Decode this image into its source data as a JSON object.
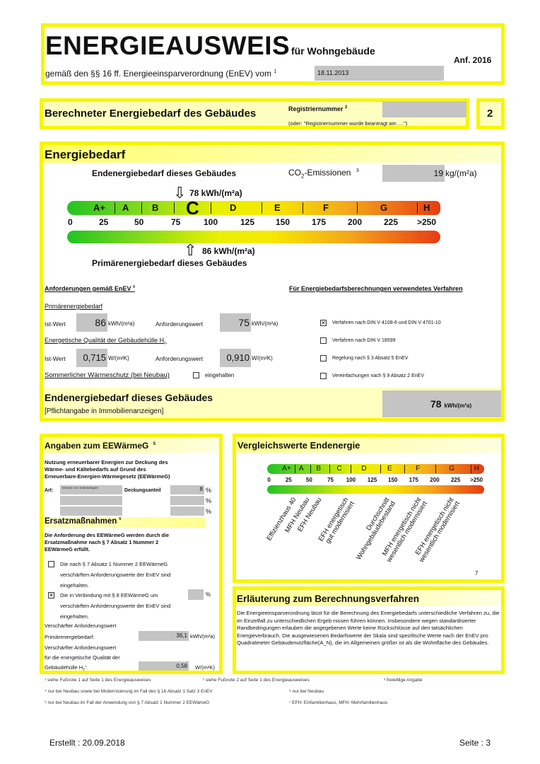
{
  "header": {
    "title": "ENERGIEAUSWEIS",
    "subtitle": "für Wohngebäude",
    "version": "Anf. 2016",
    "legal": "gemäß den §§ 16 ff. Energieeinsparverordnung (EnEV) vom",
    "legal_fn": "1",
    "date": "18.11.2013"
  },
  "section2": {
    "title": "Berechneter Energiebedarf des Gebäudes",
    "reg_label": "Registriernummer",
    "reg_fn": "2",
    "reg_note": "(oder: \"Registriernummer wurde beantragt am ....\")",
    "page_no": "2"
  },
  "energy": {
    "title": "Energiebedarf",
    "end_label": "Endenergiebedarf dieses Gebäudes",
    "co2_label": "CO",
    "co2_sub": "2",
    "co2_suffix": "-Emissionen",
    "co2_fn": "3",
    "co2_value": "19",
    "co2_unit": "kg/(m²a)",
    "end_value_label": "78 kWh/(m²a)",
    "primary_value_label": "86 kWh/(m²a)",
    "primary_label": "Primärenergiebedarf dieses Gebäudes",
    "end_value": 78,
    "primary_value": 86,
    "classes": [
      "A+",
      "A",
      "B",
      "C",
      "D",
      "E",
      "F",
      "G",
      "H"
    ],
    "current_class": "C",
    "ticks": [
      "0",
      "25",
      "50",
      "75",
      "100",
      "125",
      "150",
      "175",
      "200",
      "225",
      ">250"
    ]
  },
  "requirements": {
    "title": "Anforderungen gemäß EnEV",
    "title_fn": "4",
    "primary_heading": "Primärenergiebedarf",
    "ist_label": "Ist-Wert",
    "anf_label": "Anforderungswert",
    "primary_ist": "86",
    "primary_anf": "75",
    "unit_kwh": "kWh/(m²a)",
    "ht_heading": "Energetische Qualität der Gebäudehülle H",
    "ht_sub": "T",
    "ht_fn": "'",
    "ht_ist": "0,715",
    "ht_anf": "0,910",
    "unit_w": "W/(m²K)",
    "summer_label": "Sommerlicher Wärmeschutz (bei Neubau)",
    "summer_check": "eingehalten",
    "summer_checked": false
  },
  "method": {
    "title": "Für Energiebedarfsberechnungen verwendetes Verfahren",
    "options": [
      {
        "label": "Verfahren nach DIN V 4108-6 und DIN V 4701-10",
        "checked": true
      },
      {
        "label": "Verfahren nach DIN V 18599",
        "checked": false
      },
      {
        "label": "Regelung nach § 3 Absatz 5 EnEV",
        "checked": false
      },
      {
        "label": "Vereinfachungen nach § 9 Absatz 2 EnEV",
        "checked": false
      }
    ]
  },
  "end_summary": {
    "title": "Endenergiebedarf dieses Gebäudes",
    "note": "[Pflichtangabe in Immobilienanzeigen]",
    "value": "78",
    "unit": "kWh/(m²a)"
  },
  "eew": {
    "title": "Angaben zum EEWärmeG",
    "title_fn": "5",
    "intro": "Nutzung erneuerbarer Energien zur Deckung des Wärme- und Kältebedarfs auf Grund des Erneuerbare-Energien-Wärmegesetz (EEWärmeG)",
    "art_label": "Art:",
    "art_value": "Einsatz von Solaranlagen",
    "share_label": "Deckungsanteil",
    "share_value": "8",
    "pct": "%",
    "ersatz_title": "Ersatzmaßnahmen",
    "ersatz_fn": "6",
    "ersatz_intro": "Die Anforderung des EEWärmeG werden durch die Ersatzmaßnahme nach § 7 Absatz 1 Nummer 2 EEWärmeG erfüllt.",
    "opt1": "Die nach § 7 Absatz 1 Nummer 2 EEWärmeG verschärften Anforderungswerte der EnEV sind eingehalten.",
    "opt1_checked": false,
    "opt2": "Die in Verbindung mit § 8 EEWärmeG um verschärften Anforderungswerte der EnEV sind eingehalten.",
    "opt2_checked": true,
    "req1_label": "Verschärfter Anforderungswert",
    "req1_label2": "Primärenergiebedarf:",
    "req1_value": "36,1",
    "req1_unit": "kWh/(m²a)",
    "req2_label": "Verschärfter Anforderungswert",
    "req2_label2": "für die energetische Qualität der",
    "req2_label3": "Gebäudehülle H",
    "req2_sub": "T",
    "req2_suffix": "':",
    "req2_value": "0,58",
    "req2_unit": "W/(m²K)"
  },
  "compare": {
    "title": "Vergleichswerte Endenergie",
    "footnote": "7",
    "labels": [
      "Effizienzhaus 40",
      "MFH Neubau",
      "EFH Neubau",
      "EFH energetisch\ngut modernisiert",
      "Durchschnitt\nWohngebäudebestand",
      "MFH energetisch nicht\nwesentlich modernisiert",
      "EFH energetisch nicht\nwesentlich modernisiert"
    ]
  },
  "explain": {
    "title": "Erläuterung zum Berechnungsverfahren",
    "text": "Die Energieeinsparverordnung lässt für die Berechnung des Energiebedarfs unterschiedliche Verfahren zu, die im Einzelfall zu unterschiedlichen Ergeb-nissen führen können. Insbesondere wegen standardisierter Randbedingungen erlauben die angegebenen Werte keine Rückschlüsse auf den tatsächlichen Energieverbrauch. Die ausgewiesenen Bedarfswerte der Skala sind spezifische Werte nach der EnEV pro Quadratmeter Gebäudenutzfläche(A_N), die im Allgemeinen größer ist als die Wohnfläche des Gebäudes."
  },
  "footnotes": [
    "¹ siehe Fußnote 1 auf Seite 1 des Energieausweises",
    "² siehe Fußnote 2 auf Seite 1 des Energieausweises",
    "³ freiwillige Angabe",
    "⁴ nur bei Neubau sowie bei Modernisierung im Fall des § 16 Absatz 1 Satz 3 EnEV",
    "⁵ nur bei Neubau",
    "⁶ nur bei Neubau im Fall der Anwendung von § 7 Absatz 1 Nummer 2 EEWämeG",
    "⁷ EFH: Einfamilienhaus, MFH: Mehrfamilienhaus"
  ],
  "footer": {
    "created": "Erstellt : 20.09.2018",
    "page": "Seite : 3"
  }
}
